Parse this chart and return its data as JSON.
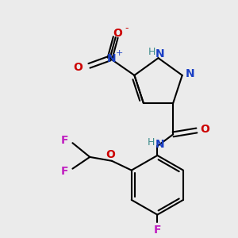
{
  "bg_color": "#ebebeb",
  "bond_color": "#000000",
  "figsize": [
    3.0,
    3.0
  ],
  "dpi": 100,
  "atom_colors": {
    "N": "#1a3fc4",
    "O": "#cc0000",
    "F": "#c020c0",
    "H": "#3d8c8c",
    "C": "#000000"
  }
}
